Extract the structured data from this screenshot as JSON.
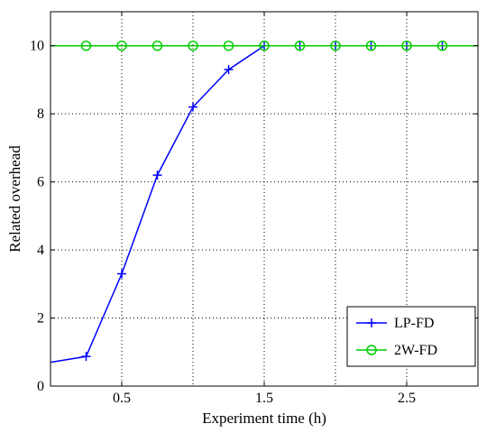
{
  "chart_data": {
    "type": "line",
    "title": "",
    "xlabel": "Experiment time (h)",
    "ylabel": "Related overhead",
    "xlim": [
      0,
      3
    ],
    "ylim": [
      0,
      11
    ],
    "x_ticks": [
      0.5,
      1.5,
      2.5
    ],
    "x_tick_labels": [
      "0.5",
      "1.5",
      "2.5"
    ],
    "y_ticks": [
      0,
      2,
      4,
      6,
      8,
      10
    ],
    "y_tick_labels": [
      "0",
      "2",
      "4",
      "6",
      "8",
      "10"
    ],
    "grid": true,
    "grid_x_positions": [
      0.5,
      1,
      1.5,
      2,
      2.5
    ],
    "legend_position": "bottom-right",
    "series": [
      {
        "name": "LP-FD",
        "color": "#0000ff",
        "marker": "plus",
        "x": [
          0,
          0.25,
          0.5,
          0.75,
          1.0,
          1.25,
          1.5,
          1.75,
          2.0,
          2.25,
          2.5,
          2.75,
          3.0
        ],
        "y": [
          0.7,
          0.87,
          3.3,
          6.2,
          8.2,
          9.3,
          10,
          10,
          10,
          10,
          10,
          10,
          10
        ],
        "marker_indices": [
          1,
          2,
          3,
          4,
          5,
          6,
          7,
          8,
          9,
          10,
          11
        ]
      },
      {
        "name": "2W-FD",
        "color": "#00cc00",
        "marker": "circle",
        "x": [
          0,
          0.25,
          0.5,
          0.75,
          1.0,
          1.25,
          1.5,
          1.75,
          2.0,
          2.25,
          2.5,
          2.75,
          3.0
        ],
        "y": [
          10,
          10,
          10,
          10,
          10,
          10,
          10,
          10,
          10,
          10,
          10,
          10,
          10
        ],
        "marker_indices": [
          1,
          2,
          3,
          4,
          5,
          6,
          7,
          8,
          9,
          10,
          11
        ]
      }
    ]
  }
}
